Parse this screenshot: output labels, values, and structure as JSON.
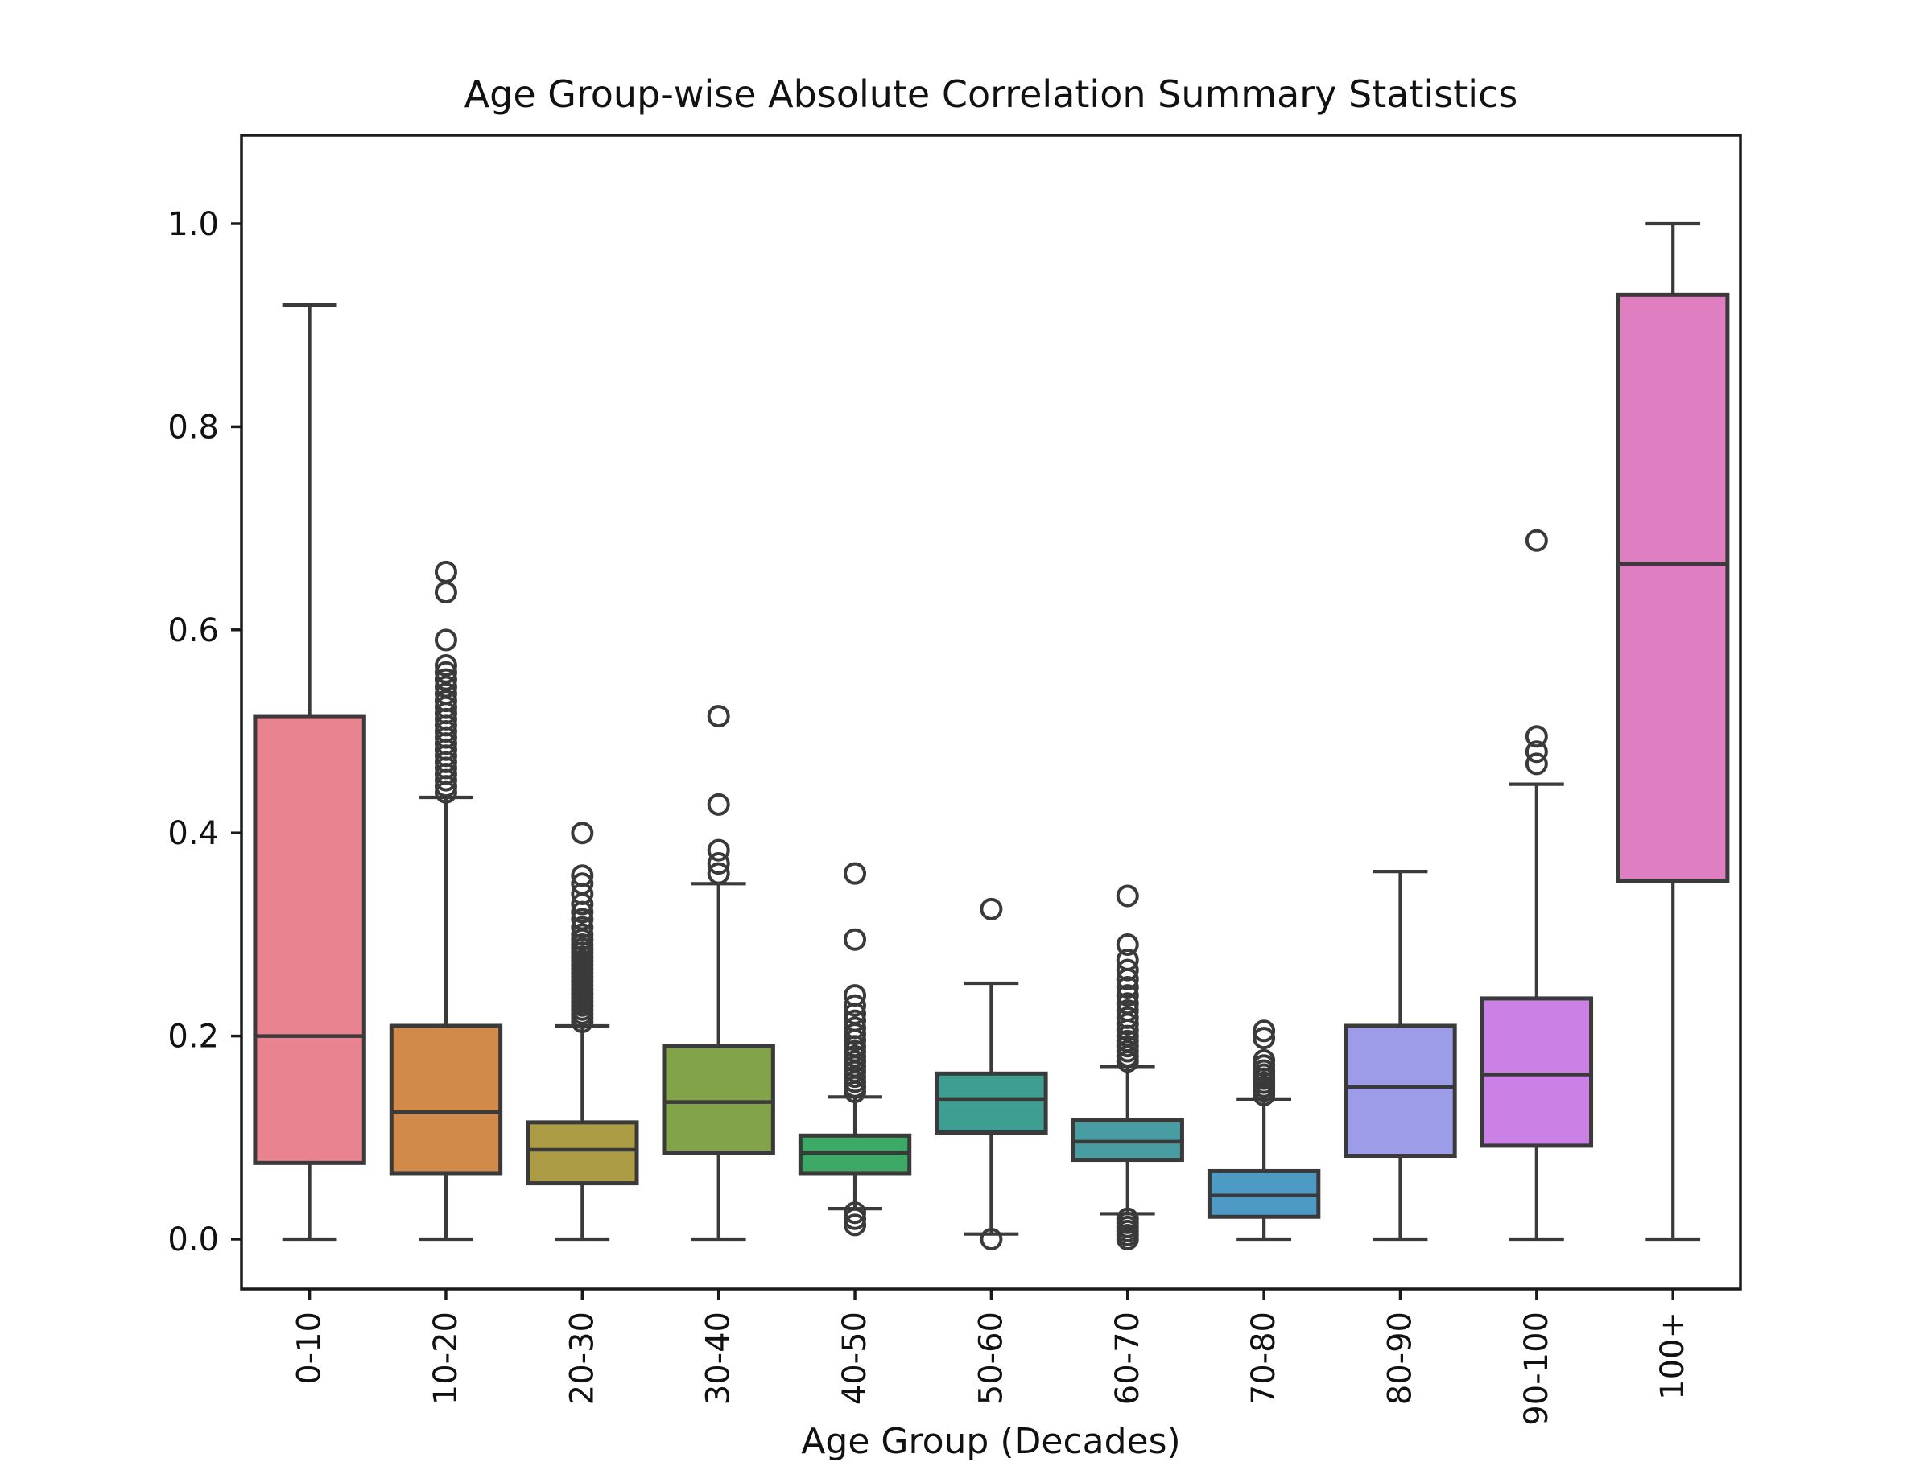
{
  "title": "Age Group-wise Absolute Correlation Summary Statistics",
  "xlabel": "Age Group (Decades)",
  "chart_data": {
    "type": "boxplot",
    "title": "Age Group-wise Absolute Correlation Summary Statistics",
    "xlabel": "Age Group (Decades)",
    "ylabel": "",
    "ylim": [
      -0.05,
      1.09
    ],
    "grid": false,
    "y_tick_labels": [
      "0.0",
      "0.2",
      "0.4",
      "0.6",
      "0.8",
      "1.0"
    ],
    "y_tick_values": [
      0.0,
      0.2,
      0.4,
      0.6,
      0.8,
      1.0
    ],
    "categories": [
      "0-10",
      "10-20",
      "20-30",
      "30-40",
      "40-50",
      "50-60",
      "60-70",
      "70-80",
      "80-90",
      "90-100",
      "100+"
    ],
    "edge_color": "#3a3a3a",
    "spine_color": "#1a1a1a",
    "groups": [
      {
        "label": "0-10",
        "color": "#e8838f",
        "whislo": 0.0,
        "q1": 0.075,
        "med": 0.2,
        "q3": 0.515,
        "whishi": 0.92,
        "fliers": []
      },
      {
        "label": "10-20",
        "color": "#d28a4a",
        "whislo": 0.0,
        "q1": 0.065,
        "med": 0.125,
        "q3": 0.21,
        "whishi": 0.435,
        "fliers": [
          0.44,
          0.446,
          0.452,
          0.458,
          0.464,
          0.47,
          0.476,
          0.482,
          0.488,
          0.494,
          0.5,
          0.506,
          0.512,
          0.518,
          0.524,
          0.53,
          0.537,
          0.544,
          0.551,
          0.558,
          0.565,
          0.59,
          0.637,
          0.657
        ]
      },
      {
        "label": "20-30",
        "color": "#ab9c45",
        "whislo": 0.0,
        "q1": 0.055,
        "med": 0.088,
        "q3": 0.115,
        "whishi": 0.21,
        "fliers": [
          0.214,
          0.218,
          0.222,
          0.226,
          0.23,
          0.234,
          0.238,
          0.242,
          0.246,
          0.25,
          0.254,
          0.258,
          0.262,
          0.266,
          0.27,
          0.274,
          0.278,
          0.282,
          0.286,
          0.29,
          0.295,
          0.3,
          0.307,
          0.315,
          0.322,
          0.33,
          0.34,
          0.35,
          0.358,
          0.4
        ]
      },
      {
        "label": "30-40",
        "color": "#82a34a",
        "whislo": 0.0,
        "q1": 0.085,
        "med": 0.135,
        "q3": 0.19,
        "whishi": 0.35,
        "fliers": [
          0.36,
          0.37,
          0.383,
          0.428,
          0.515
        ]
      },
      {
        "label": "40-50",
        "color": "#3ea867",
        "whislo": 0.03,
        "q1": 0.065,
        "med": 0.085,
        "q3": 0.102,
        "whishi": 0.14,
        "fliers": [
          0.145,
          0.15,
          0.155,
          0.16,
          0.165,
          0.17,
          0.175,
          0.18,
          0.185,
          0.19,
          0.196,
          0.202,
          0.208,
          0.215,
          0.222,
          0.23,
          0.24,
          0.295,
          0.36,
          0.026,
          0.02,
          0.014
        ]
      },
      {
        "label": "50-60",
        "color": "#3f9e92",
        "whislo": 0.005,
        "q1": 0.105,
        "med": 0.138,
        "q3": 0.163,
        "whishi": 0.252,
        "fliers": [
          0.325,
          0.0
        ]
      },
      {
        "label": "60-70",
        "color": "#489da2",
        "whislo": 0.025,
        "q1": 0.078,
        "med": 0.096,
        "q3": 0.117,
        "whishi": 0.17,
        "fliers": [
          0.175,
          0.18,
          0.185,
          0.19,
          0.195,
          0.2,
          0.206,
          0.212,
          0.218,
          0.225,
          0.232,
          0.24,
          0.248,
          0.256,
          0.265,
          0.275,
          0.29,
          0.338,
          0.02,
          0.016,
          0.012,
          0.008,
          0.004,
          0.0
        ]
      },
      {
        "label": "70-80",
        "color": "#4d9ac4",
        "whislo": 0.0,
        "q1": 0.022,
        "med": 0.043,
        "q3": 0.067,
        "whishi": 0.138,
        "fliers": [
          0.142,
          0.146,
          0.15,
          0.154,
          0.158,
          0.162,
          0.166,
          0.171,
          0.176,
          0.198,
          0.205
        ]
      },
      {
        "label": "80-90",
        "color": "#9d9ce8",
        "whislo": 0.0,
        "q1": 0.082,
        "med": 0.15,
        "q3": 0.21,
        "whishi": 0.362,
        "fliers": []
      },
      {
        "label": "90-100",
        "color": "#cb80e6",
        "whislo": 0.0,
        "q1": 0.092,
        "med": 0.162,
        "q3": 0.237,
        "whishi": 0.448,
        "fliers": [
          0.468,
          0.48,
          0.495,
          0.688
        ]
      },
      {
        "label": "100+",
        "color": "#e07ec2",
        "whislo": 0.0,
        "q1": 0.353,
        "med": 0.665,
        "q3": 0.93,
        "whishi": 1.0,
        "fliers": []
      }
    ]
  }
}
